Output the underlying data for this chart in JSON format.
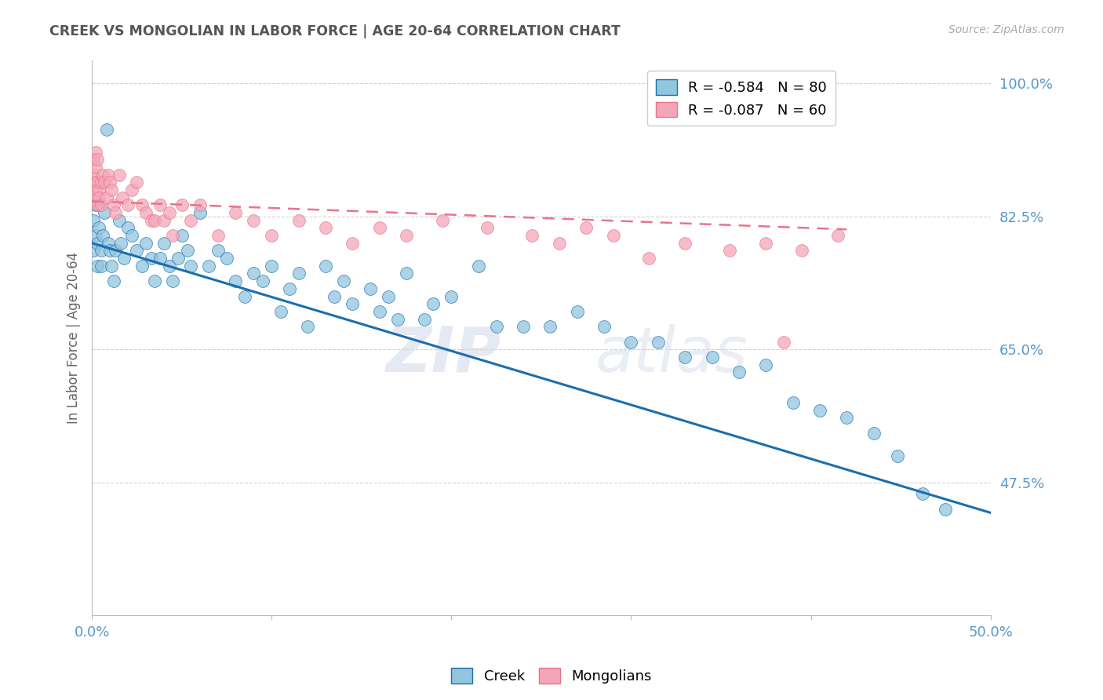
{
  "title": "CREEK VS MONGOLIAN IN LABOR FORCE | AGE 20-64 CORRELATION CHART",
  "source": "Source: ZipAtlas.com",
  "ylabel": "In Labor Force | Age 20-64",
  "xlim": [
    0.0,
    0.5
  ],
  "ylim": [
    0.3,
    1.03
  ],
  "xticks": [
    0.0,
    0.1,
    0.2,
    0.3,
    0.4,
    0.5
  ],
  "xticklabels": [
    "0.0%",
    "",
    "",
    "",
    "",
    "50.0%"
  ],
  "yticks": [
    0.475,
    0.65,
    0.825,
    1.0
  ],
  "yticklabels": [
    "47.5%",
    "65.0%",
    "82.5%",
    "100.0%"
  ],
  "legend_blue_label": "R = -0.584   N = 80",
  "legend_pink_label": "R = -0.087   N = 60",
  "watermark_zip": "ZIP",
  "watermark_atlas": "atlas",
  "blue_color": "#92c5de",
  "pink_color": "#f4a6b8",
  "trendline_blue": "#1a6faf",
  "trendline_pink": "#e8748a",
  "grid_color": "#cccccc",
  "title_color": "#555555",
  "axis_label_color": "#666666",
  "tick_color": "#5599cc",
  "creek_x": [
    0.001,
    0.001,
    0.002,
    0.002,
    0.003,
    0.003,
    0.004,
    0.004,
    0.005,
    0.005,
    0.006,
    0.007,
    0.008,
    0.009,
    0.01,
    0.011,
    0.012,
    0.013,
    0.015,
    0.016,
    0.018,
    0.02,
    0.022,
    0.025,
    0.028,
    0.03,
    0.033,
    0.035,
    0.038,
    0.04,
    0.043,
    0.045,
    0.048,
    0.05,
    0.053,
    0.055,
    0.06,
    0.065,
    0.07,
    0.075,
    0.08,
    0.085,
    0.09,
    0.095,
    0.1,
    0.105,
    0.11,
    0.115,
    0.12,
    0.13,
    0.135,
    0.14,
    0.145,
    0.155,
    0.16,
    0.165,
    0.17,
    0.175,
    0.185,
    0.19,
    0.2,
    0.215,
    0.225,
    0.24,
    0.255,
    0.27,
    0.285,
    0.3,
    0.315,
    0.33,
    0.345,
    0.36,
    0.375,
    0.39,
    0.405,
    0.42,
    0.435,
    0.448,
    0.462,
    0.475
  ],
  "creek_y": [
    0.78,
    0.82,
    0.8,
    0.84,
    0.79,
    0.76,
    0.81,
    0.84,
    0.78,
    0.76,
    0.8,
    0.83,
    0.94,
    0.79,
    0.78,
    0.76,
    0.74,
    0.78,
    0.82,
    0.79,
    0.77,
    0.81,
    0.8,
    0.78,
    0.76,
    0.79,
    0.77,
    0.74,
    0.77,
    0.79,
    0.76,
    0.74,
    0.77,
    0.8,
    0.78,
    0.76,
    0.83,
    0.76,
    0.78,
    0.77,
    0.74,
    0.72,
    0.75,
    0.74,
    0.76,
    0.7,
    0.73,
    0.75,
    0.68,
    0.76,
    0.72,
    0.74,
    0.71,
    0.73,
    0.7,
    0.72,
    0.69,
    0.75,
    0.69,
    0.71,
    0.72,
    0.76,
    0.68,
    0.68,
    0.68,
    0.7,
    0.68,
    0.66,
    0.66,
    0.64,
    0.64,
    0.62,
    0.63,
    0.58,
    0.57,
    0.56,
    0.54,
    0.51,
    0.46,
    0.44
  ],
  "mongolian_x": [
    0.001,
    0.001,
    0.001,
    0.002,
    0.002,
    0.002,
    0.002,
    0.003,
    0.003,
    0.003,
    0.004,
    0.004,
    0.005,
    0.005,
    0.006,
    0.007,
    0.008,
    0.009,
    0.01,
    0.011,
    0.012,
    0.013,
    0.015,
    0.017,
    0.02,
    0.022,
    0.025,
    0.028,
    0.03,
    0.033,
    0.035,
    0.038,
    0.04,
    0.043,
    0.045,
    0.05,
    0.055,
    0.06,
    0.07,
    0.08,
    0.09,
    0.1,
    0.115,
    0.13,
    0.145,
    0.16,
    0.175,
    0.195,
    0.22,
    0.245,
    0.26,
    0.275,
    0.29,
    0.31,
    0.33,
    0.355,
    0.375,
    0.395,
    0.415,
    0.385
  ],
  "mongolian_y": [
    0.88,
    0.9,
    0.85,
    0.87,
    0.89,
    0.91,
    0.86,
    0.87,
    0.9,
    0.84,
    0.86,
    0.85,
    0.87,
    0.84,
    0.88,
    0.87,
    0.85,
    0.88,
    0.87,
    0.86,
    0.84,
    0.83,
    0.88,
    0.85,
    0.84,
    0.86,
    0.87,
    0.84,
    0.83,
    0.82,
    0.82,
    0.84,
    0.82,
    0.83,
    0.8,
    0.84,
    0.82,
    0.84,
    0.8,
    0.83,
    0.82,
    0.8,
    0.82,
    0.81,
    0.79,
    0.81,
    0.8,
    0.82,
    0.81,
    0.8,
    0.79,
    0.81,
    0.8,
    0.77,
    0.79,
    0.78,
    0.79,
    0.78,
    0.8,
    0.66
  ],
  "blue_trendline_x": [
    0.0,
    0.5
  ],
  "blue_trendline_y": [
    0.79,
    0.435
  ],
  "pink_trendline_x": [
    0.0,
    0.42
  ],
  "pink_trendline_y": [
    0.845,
    0.808
  ]
}
